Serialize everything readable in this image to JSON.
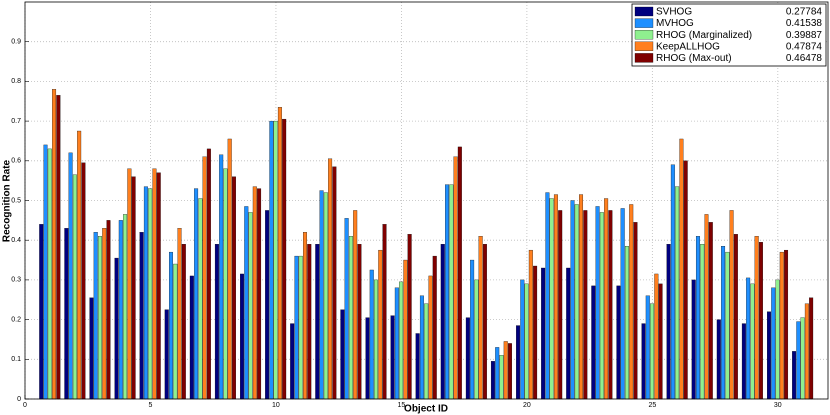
{
  "chart_data": {
    "type": "bar",
    "x_label": "Object ID",
    "y_label": "Recognition Rate",
    "categories": [
      1,
      2,
      3,
      4,
      5,
      6,
      7,
      8,
      9,
      10,
      11,
      12,
      13,
      14,
      15,
      16,
      17,
      18,
      19,
      20,
      21,
      22,
      23,
      24,
      25,
      26,
      27,
      28,
      29,
      30,
      31
    ],
    "xlim": [
      0,
      32
    ],
    "xticks": [
      0,
      5,
      10,
      15,
      20,
      25,
      30
    ],
    "ylim": [
      0,
      1
    ],
    "yticks": [
      0,
      0.1,
      0.2,
      0.3,
      0.4,
      0.5,
      0.6,
      0.7,
      0.8,
      0.9
    ],
    "grid": true,
    "legend_position": "top-right",
    "series": [
      {
        "name": "SVHOG",
        "legend_value": 0.27784,
        "color": "#00007f",
        "values": [
          0.44,
          0.43,
          0.255,
          0.355,
          0.42,
          0.225,
          0.31,
          0.39,
          0.315,
          0.475,
          0.19,
          0.39,
          0.225,
          0.205,
          0.21,
          0.165,
          0.39,
          0.205,
          0.095,
          0.185,
          0.33,
          0.33,
          0.285,
          0.285,
          0.19,
          0.39,
          0.3,
          0.2,
          0.19,
          0.22,
          0.12
        ]
      },
      {
        "name": "MVHOG",
        "legend_value": 0.41538,
        "color": "#1e8fff",
        "values": [
          0.64,
          0.62,
          0.42,
          0.45,
          0.535,
          0.37,
          0.53,
          0.615,
          0.485,
          0.7,
          0.36,
          0.525,
          0.455,
          0.325,
          0.28,
          0.26,
          0.54,
          0.35,
          0.13,
          0.3,
          0.52,
          0.5,
          0.485,
          0.48,
          0.26,
          0.59,
          0.41,
          0.385,
          0.305,
          0.28,
          0.195
        ]
      },
      {
        "name": "RHOG (Marginalized)",
        "legend_value": 0.39887,
        "color": "#8ff08f",
        "values": [
          0.63,
          0.565,
          0.41,
          0.465,
          0.53,
          0.34,
          0.505,
          0.58,
          0.47,
          0.7,
          0.36,
          0.52,
          0.41,
          0.3,
          0.295,
          0.24,
          0.54,
          0.3,
          0.11,
          0.29,
          0.505,
          0.49,
          0.47,
          0.385,
          0.24,
          0.535,
          0.39,
          0.37,
          0.29,
          0.3,
          0.205
        ]
      },
      {
        "name": "KeepALLHOG",
        "legend_value": 0.47874,
        "color": "#ff7f1e",
        "values": [
          0.78,
          0.675,
          0.43,
          0.58,
          0.58,
          0.43,
          0.61,
          0.655,
          0.535,
          0.735,
          0.42,
          0.605,
          0.475,
          0.375,
          0.35,
          0.31,
          0.61,
          0.41,
          0.145,
          0.375,
          0.515,
          0.515,
          0.505,
          0.49,
          0.315,
          0.655,
          0.465,
          0.475,
          0.41,
          0.37,
          0.24
        ]
      },
      {
        "name": "RHOG (Max-out)",
        "legend_value": 0.46478,
        "color": "#7f0000",
        "values": [
          0.765,
          0.595,
          0.45,
          0.56,
          0.57,
          0.39,
          0.63,
          0.56,
          0.53,
          0.705,
          0.39,
          0.585,
          0.39,
          0.44,
          0.415,
          0.36,
          0.635,
          0.39,
          0.14,
          0.335,
          0.475,
          0.475,
          0.475,
          0.445,
          0.29,
          0.6,
          0.445,
          0.415,
          0.395,
          0.375,
          0.255
        ]
      }
    ]
  }
}
